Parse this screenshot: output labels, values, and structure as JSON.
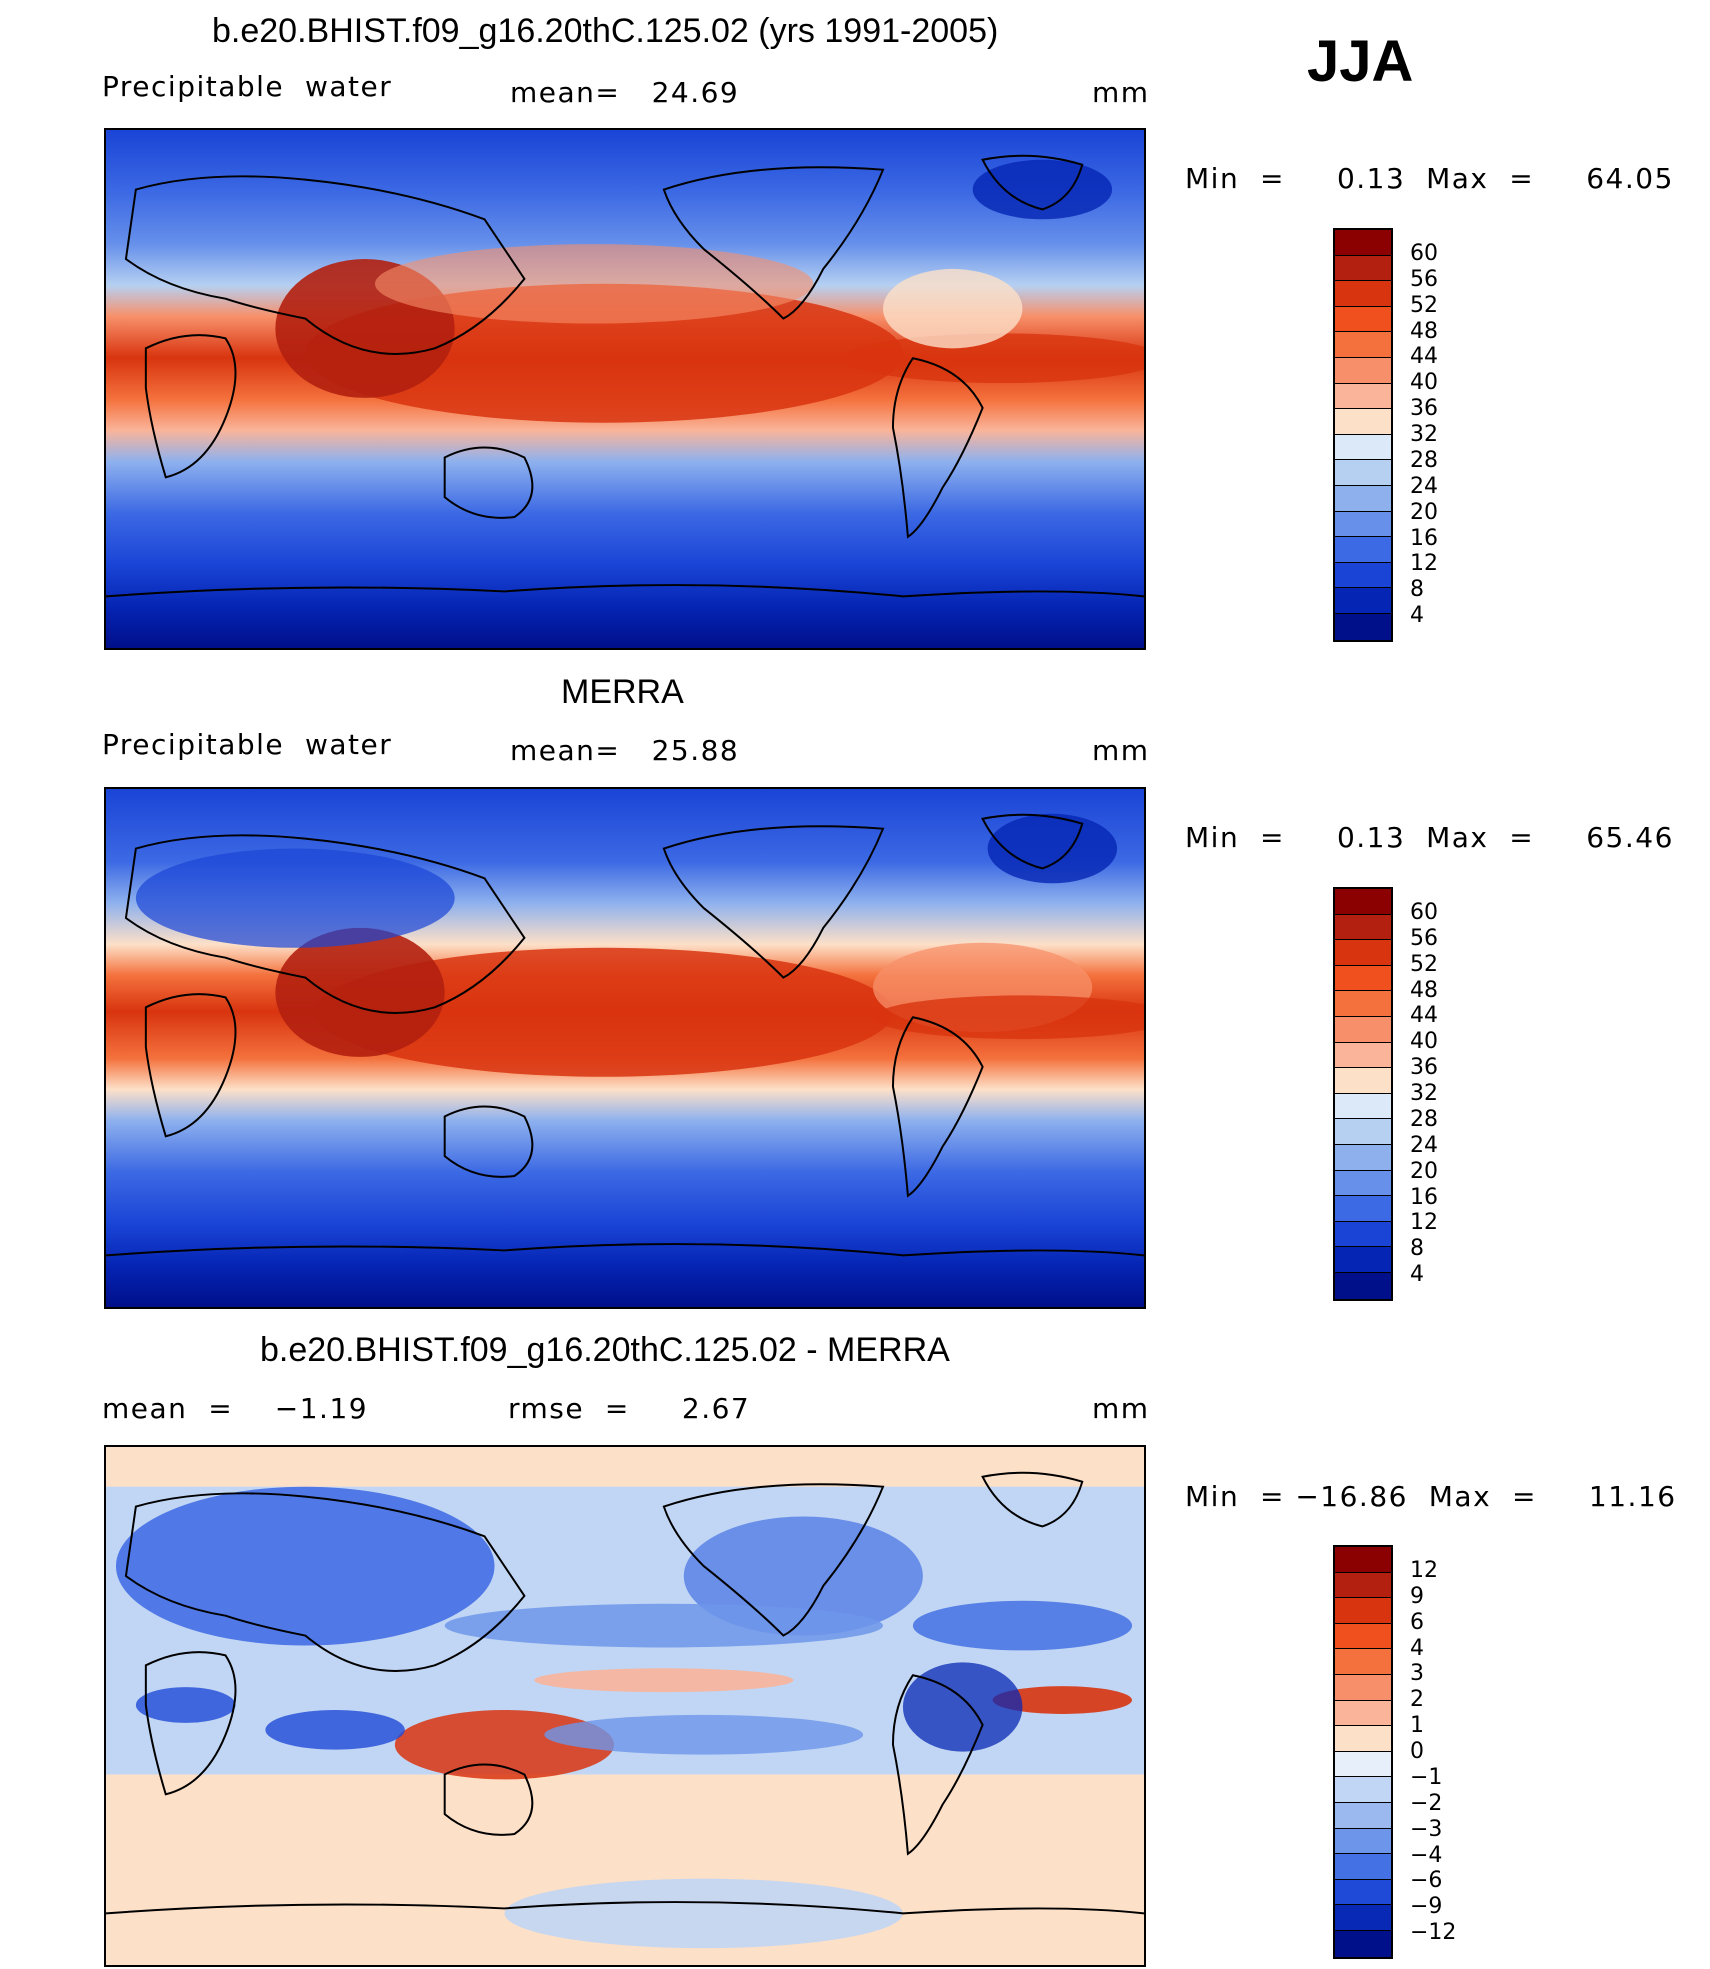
{
  "season": "JJA",
  "panels": [
    {
      "title": "b.e20.BHIST.f09_g16.20thC.125.02 (yrs 1991-2005)",
      "left_label": "Precipitable  water",
      "center_label": "mean=   24.69",
      "units": "mm",
      "minmax": "Min  =     0.13  Max  =     64.05",
      "colorbar": {
        "labels": [
          "60",
          "56",
          "52",
          "48",
          "44",
          "40",
          "36",
          "32",
          "28",
          "24",
          "20",
          "16",
          "12",
          "8",
          "4"
        ],
        "colors": [
          "#8b0000",
          "#b3200f",
          "#d8340f",
          "#f0501e",
          "#f4713d",
          "#f7906a",
          "#fab49a",
          "#fde0c8",
          "#dbe9f8",
          "#b6d0f2",
          "#8eb1ee",
          "#6690ea",
          "#3c69e4",
          "#1a44d6",
          "#0525b4",
          "#000f8a"
        ]
      }
    },
    {
      "title": "MERRA",
      "left_label": "Precipitable  water",
      "center_label": "mean=   25.88",
      "units": "mm",
      "minmax": "Min  =     0.13  Max  =     65.46",
      "colorbar": {
        "labels": [
          "60",
          "56",
          "52",
          "48",
          "44",
          "40",
          "36",
          "32",
          "28",
          "24",
          "20",
          "16",
          "12",
          "8",
          "4"
        ],
        "colors": [
          "#8b0000",
          "#b3200f",
          "#d8340f",
          "#f0501e",
          "#f4713d",
          "#f7906a",
          "#fab49a",
          "#fde0c8",
          "#dbe9f8",
          "#b6d0f2",
          "#8eb1ee",
          "#6690ea",
          "#3c69e4",
          "#1a44d6",
          "#0525b4",
          "#000f8a"
        ]
      }
    },
    {
      "title": "b.e20.BHIST.f09_g16.20thC.125.02 - MERRA",
      "left_label": "mean  =    −1.19",
      "center_label": "rmse  =     2.67",
      "units": "mm",
      "minmax": "Min  = −16.86  Max  =     11.16",
      "colorbar": {
        "labels": [
          "12",
          "9",
          "6",
          "4",
          "3",
          "2",
          "1",
          "0",
          "−1",
          "−2",
          "−3",
          "−4",
          "−6",
          "−9",
          "−12"
        ],
        "colors": [
          "#8b0000",
          "#b3200f",
          "#d8340f",
          "#f0501e",
          "#f4713d",
          "#f7906a",
          "#fab49a",
          "#fde0c8",
          "#e6effa",
          "#c1d6f4",
          "#9bb9ef",
          "#6d96ea",
          "#4471e4",
          "#1f4ad8",
          "#0828b6",
          "#000f8a"
        ]
      }
    }
  ]
}
